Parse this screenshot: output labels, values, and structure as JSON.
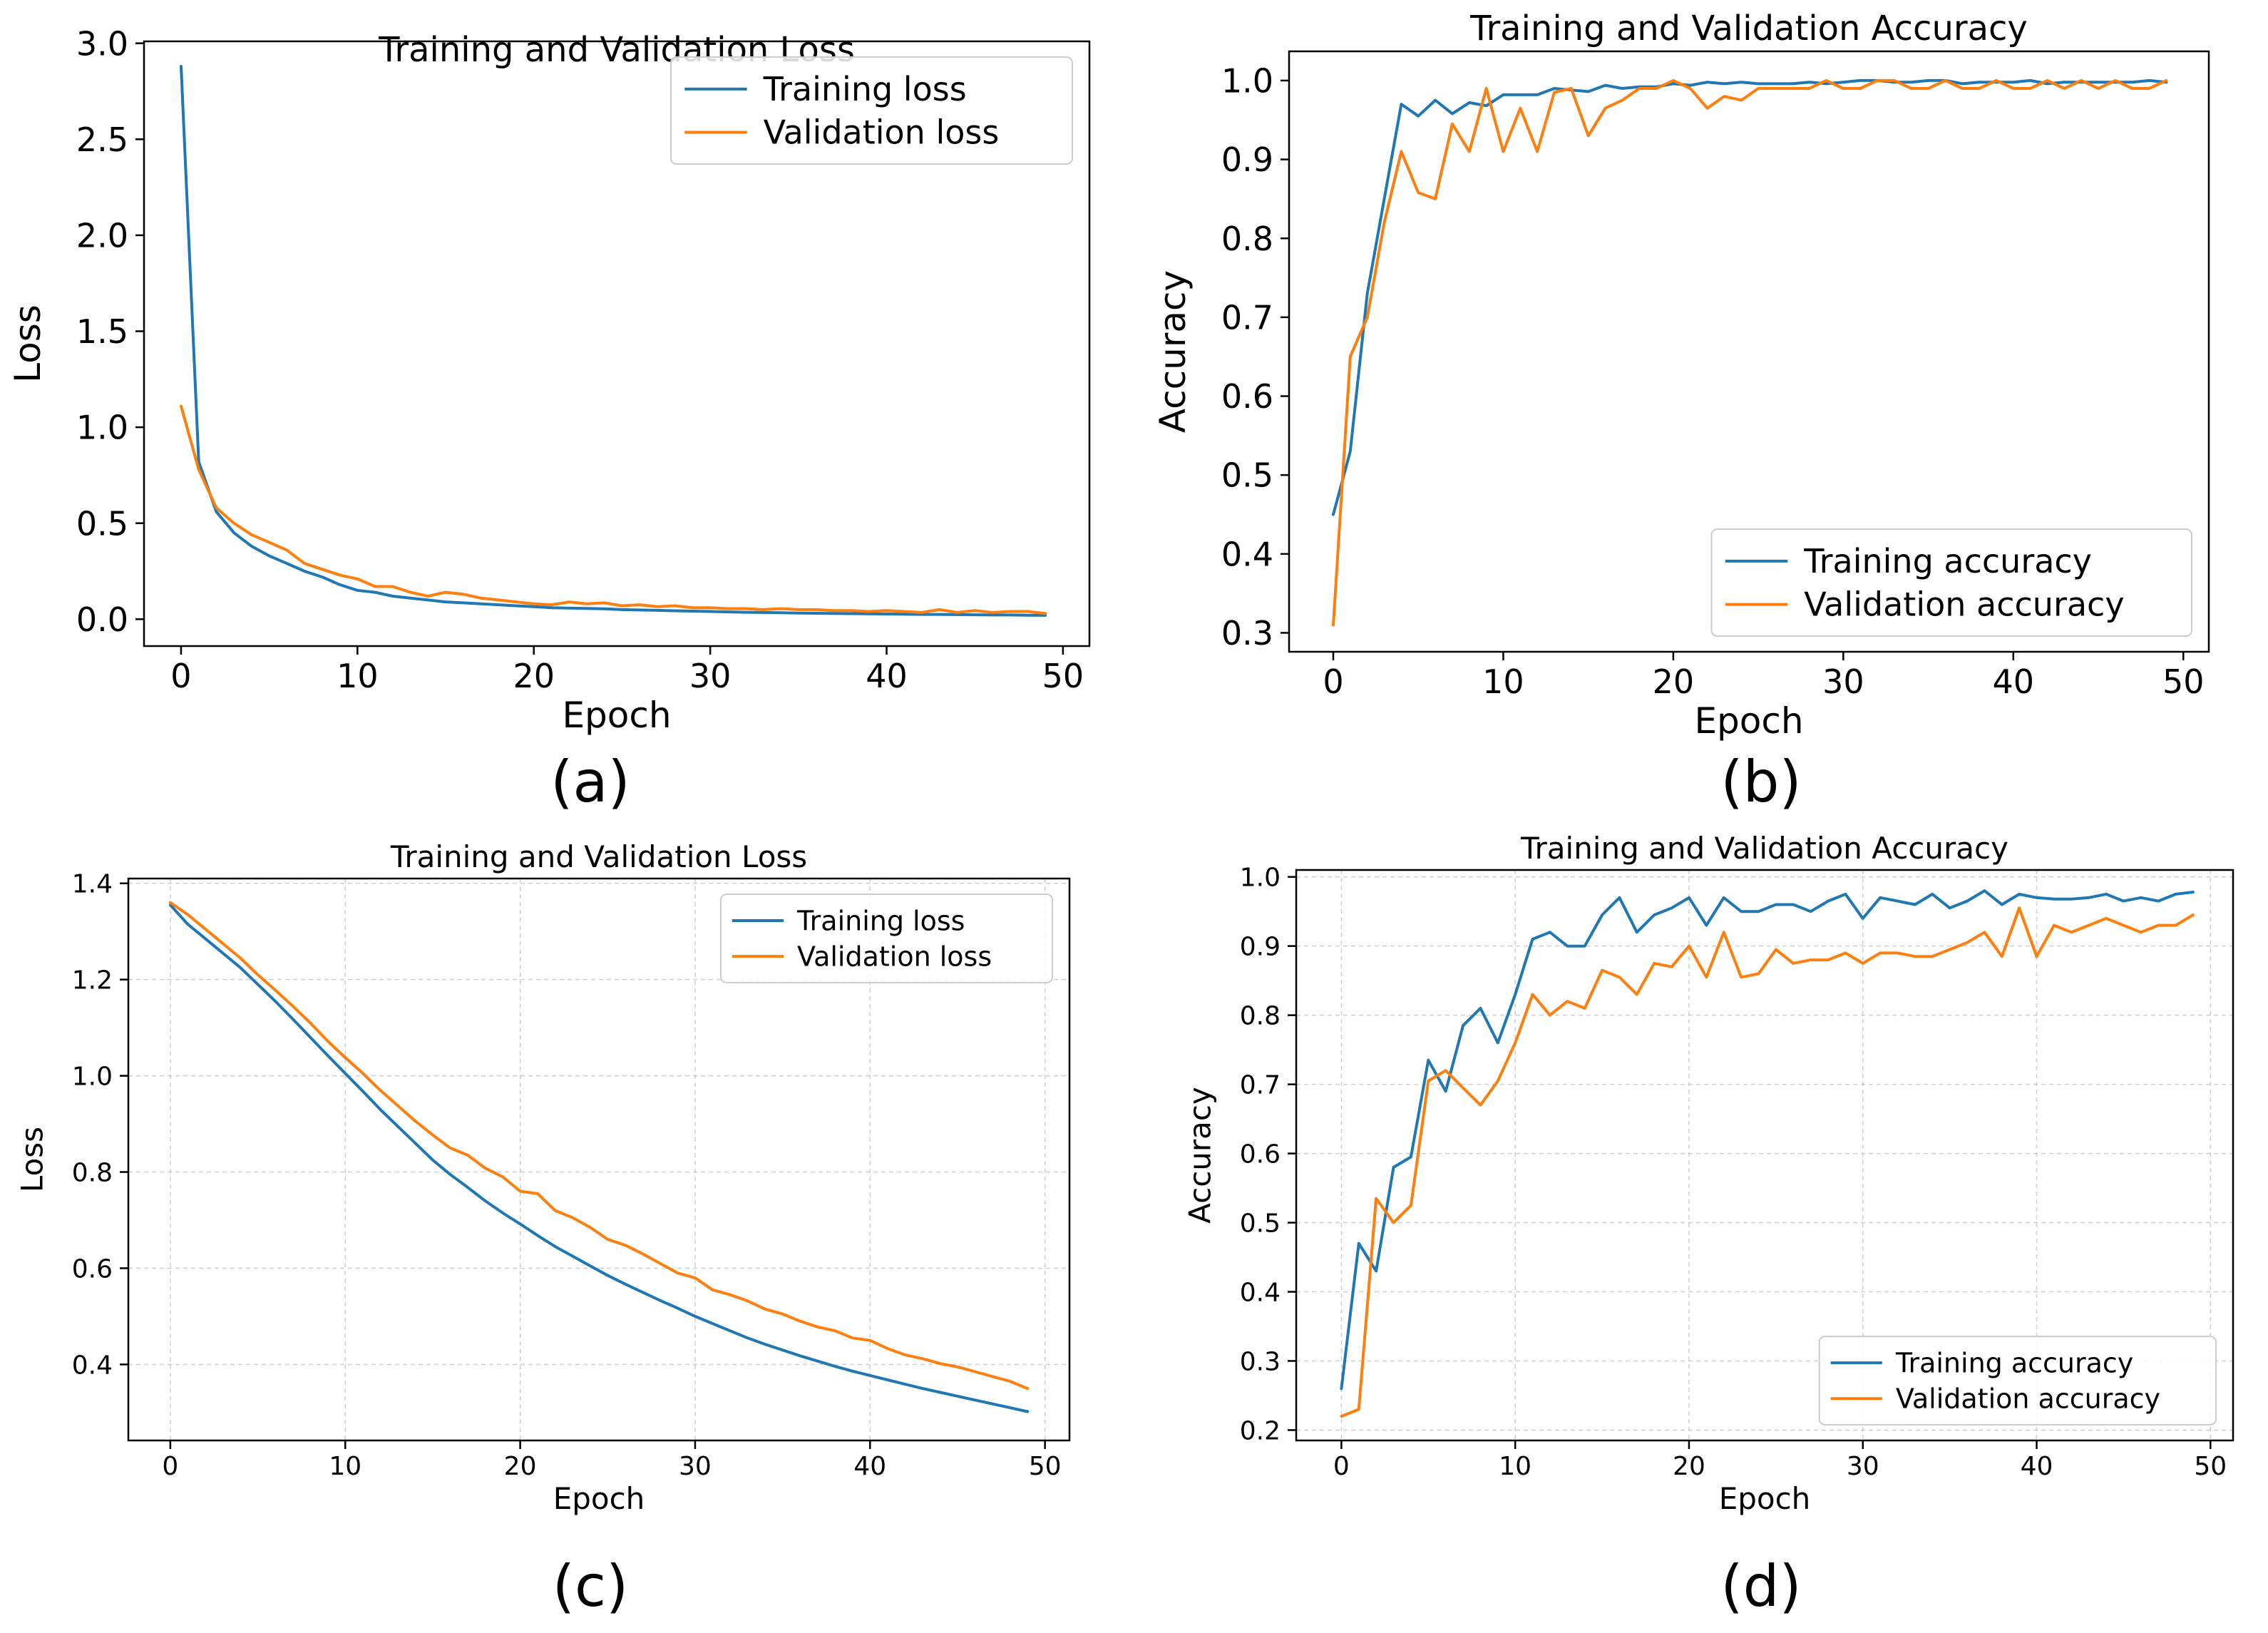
{
  "panel_labels": [
    "(a)",
    "(b)",
    "(c)",
    "(d)"
  ],
  "colors": {
    "training": "#1f77b4",
    "validation": "#ff7f0e",
    "axes": "#000000",
    "grid": "#b0b0b0"
  },
  "chart_data": [
    {
      "type": "line",
      "panel": "(a)",
      "title": "Training and Validation Loss",
      "xlabel": "Epoch",
      "ylabel": "Loss",
      "xlim": [
        -2.1,
        51.5
      ],
      "ylim": [
        -0.14,
        3.01
      ],
      "xticks": [
        0,
        10,
        20,
        30,
        40,
        50
      ],
      "yticks": [
        0.0,
        0.5,
        1.0,
        1.5,
        2.0,
        2.5,
        3.0
      ],
      "ytick_labels": [
        "0.0",
        "0.5",
        "1.0",
        "1.5",
        "2.0",
        "2.5",
        "3.0"
      ],
      "grid": false,
      "legend_loc": "top-right",
      "series": [
        {
          "name": "Training loss",
          "color": "#1f77b4",
          "values": [
            2.88,
            0.82,
            0.56,
            0.45,
            0.38,
            0.33,
            0.29,
            0.25,
            0.22,
            0.18,
            0.15,
            0.14,
            0.12,
            0.11,
            0.1,
            0.09,
            0.085,
            0.08,
            0.075,
            0.07,
            0.065,
            0.06,
            0.058,
            0.056,
            0.054,
            0.05,
            0.048,
            0.046,
            0.044,
            0.042,
            0.04,
            0.038,
            0.036,
            0.035,
            0.034,
            0.032,
            0.031,
            0.03,
            0.029,
            0.028,
            0.027,
            0.026,
            0.025,
            0.025,
            0.024,
            0.023,
            0.022,
            0.022,
            0.021,
            0.02
          ]
        },
        {
          "name": "Validation loss",
          "color": "#ff7f0e",
          "values": [
            1.11,
            0.78,
            0.58,
            0.5,
            0.44,
            0.4,
            0.36,
            0.29,
            0.26,
            0.23,
            0.21,
            0.17,
            0.17,
            0.14,
            0.12,
            0.14,
            0.13,
            0.11,
            0.1,
            0.09,
            0.08,
            0.075,
            0.09,
            0.08,
            0.085,
            0.07,
            0.075,
            0.065,
            0.07,
            0.06,
            0.06,
            0.055,
            0.055,
            0.05,
            0.055,
            0.05,
            0.05,
            0.045,
            0.045,
            0.04,
            0.045,
            0.04,
            0.035,
            0.05,
            0.035,
            0.045,
            0.035,
            0.04,
            0.04,
            0.03
          ]
        }
      ]
    },
    {
      "type": "line",
      "panel": "(b)",
      "title": "Training and Validation Accuracy",
      "xlabel": "Epoch",
      "ylabel": "Accuracy",
      "xlim": [
        -2.6,
        51.5
      ],
      "ylim": [
        0.276,
        1.037
      ],
      "xticks": [
        0,
        10,
        20,
        30,
        40,
        50
      ],
      "yticks": [
        0.3,
        0.4,
        0.5,
        0.6,
        0.7,
        0.8,
        0.9,
        1.0
      ],
      "ytick_labels": [
        "0.3",
        "0.4",
        "0.5",
        "0.6",
        "0.7",
        "0.8",
        "0.9",
        "1.0"
      ],
      "grid": false,
      "legend_loc": "bottom-right",
      "series": [
        {
          "name": "Training accuracy",
          "color": "#1f77b4",
          "values": [
            0.45,
            0.53,
            0.73,
            0.85,
            0.97,
            0.955,
            0.975,
            0.958,
            0.972,
            0.968,
            0.982,
            0.982,
            0.982,
            0.99,
            0.988,
            0.986,
            0.994,
            0.99,
            0.992,
            0.992,
            0.996,
            0.994,
            0.998,
            0.996,
            0.998,
            0.996,
            0.996,
            0.996,
            0.998,
            0.996,
            0.998,
            1.0,
            1.0,
            0.998,
            0.998,
            1.0,
            1.0,
            0.996,
            0.998,
            0.998,
            0.998,
            1.0,
            0.996,
            0.998,
            0.998,
            0.998,
            0.998,
            0.998,
            1.0,
            0.998
          ]
        },
        {
          "name": "Validation accuracy",
          "color": "#ff7f0e",
          "values": [
            0.31,
            0.65,
            0.7,
            0.82,
            0.91,
            0.858,
            0.85,
            0.945,
            0.91,
            0.99,
            0.91,
            0.965,
            0.91,
            0.985,
            0.99,
            0.93,
            0.965,
            0.975,
            0.99,
            0.99,
            1.0,
            0.99,
            0.965,
            0.98,
            0.975,
            0.99,
            0.99,
            0.99,
            0.99,
            1.0,
            0.99,
            0.99,
            1.0,
            1.0,
            0.99,
            0.99,
            1.0,
            0.99,
            0.99,
            1.0,
            0.99,
            0.99,
            1.0,
            0.99,
            1.0,
            0.99,
            1.0,
            0.99,
            0.99,
            1.0
          ]
        }
      ]
    },
    {
      "type": "line",
      "panel": "(c)",
      "title": "Training and Validation Loss",
      "xlabel": "Epoch",
      "ylabel": "Loss",
      "xlim": [
        -2.4,
        51.4
      ],
      "ylim": [
        0.242,
        1.41
      ],
      "xticks": [
        0,
        10,
        20,
        30,
        40,
        50
      ],
      "yticks": [
        0.4,
        0.6,
        0.8,
        1.0,
        1.2,
        1.4
      ],
      "ytick_labels": [
        "0.4",
        "0.6",
        "0.8",
        "1.0",
        "1.2",
        "1.4"
      ],
      "grid": true,
      "legend_loc": "top-right",
      "series": [
        {
          "name": "Training loss",
          "color": "#1f77b4",
          "values": [
            1.355,
            1.315,
            1.285,
            1.255,
            1.225,
            1.19,
            1.155,
            1.118,
            1.08,
            1.042,
            1.005,
            0.968,
            0.93,
            0.895,
            0.86,
            0.825,
            0.795,
            0.768,
            0.74,
            0.715,
            0.692,
            0.668,
            0.645,
            0.625,
            0.605,
            0.585,
            0.567,
            0.55,
            0.533,
            0.517,
            0.5,
            0.485,
            0.47,
            0.455,
            0.442,
            0.43,
            0.418,
            0.407,
            0.396,
            0.386,
            0.377,
            0.368,
            0.359,
            0.35,
            0.342,
            0.334,
            0.326,
            0.318,
            0.31,
            0.302
          ]
        },
        {
          "name": "Validation loss",
          "color": "#ff7f0e",
          "values": [
            1.36,
            1.335,
            1.305,
            1.275,
            1.245,
            1.21,
            1.178,
            1.145,
            1.11,
            1.072,
            1.038,
            1.005,
            0.97,
            0.938,
            0.906,
            0.877,
            0.85,
            0.835,
            0.808,
            0.79,
            0.76,
            0.755,
            0.72,
            0.705,
            0.685,
            0.66,
            0.648,
            0.63,
            0.61,
            0.59,
            0.58,
            0.555,
            0.545,
            0.532,
            0.515,
            0.505,
            0.49,
            0.478,
            0.47,
            0.455,
            0.45,
            0.433,
            0.42,
            0.412,
            0.402,
            0.395,
            0.385,
            0.375,
            0.365,
            0.35
          ]
        }
      ]
    },
    {
      "type": "line",
      "panel": "(d)",
      "title": "Training and Validation Accuracy",
      "xlabel": "Epoch",
      "ylabel": "Accuracy",
      "xlim": [
        -2.6,
        51.3
      ],
      "ylim": [
        0.185,
        1.01
      ],
      "xticks": [
        0,
        10,
        20,
        30,
        40,
        50
      ],
      "yticks": [
        0.2,
        0.3,
        0.4,
        0.5,
        0.6,
        0.7,
        0.8,
        0.9,
        1.0
      ],
      "ytick_labels": [
        "0.2",
        "0.3",
        "0.4",
        "0.5",
        "0.6",
        "0.7",
        "0.8",
        "0.9",
        "1.0"
      ],
      "grid": true,
      "legend_loc": "bottom-right",
      "series": [
        {
          "name": "Training accuracy",
          "color": "#1f77b4",
          "values": [
            0.26,
            0.47,
            0.43,
            0.58,
            0.595,
            0.735,
            0.69,
            0.785,
            0.81,
            0.76,
            0.83,
            0.91,
            0.92,
            0.9,
            0.9,
            0.945,
            0.97,
            0.92,
            0.945,
            0.955,
            0.97,
            0.93,
            0.97,
            0.95,
            0.95,
            0.96,
            0.96,
            0.95,
            0.965,
            0.975,
            0.94,
            0.97,
            0.965,
            0.96,
            0.975,
            0.955,
            0.965,
            0.98,
            0.96,
            0.975,
            0.97,
            0.968,
            0.968,
            0.97,
            0.975,
            0.965,
            0.97,
            0.965,
            0.975,
            0.978
          ]
        },
        {
          "name": "Validation accuracy",
          "color": "#ff7f0e",
          "values": [
            0.22,
            0.23,
            0.535,
            0.5,
            0.525,
            0.705,
            0.72,
            0.695,
            0.67,
            0.705,
            0.76,
            0.83,
            0.8,
            0.82,
            0.81,
            0.865,
            0.855,
            0.83,
            0.875,
            0.87,
            0.9,
            0.855,
            0.92,
            0.855,
            0.86,
            0.895,
            0.875,
            0.88,
            0.88,
            0.89,
            0.875,
            0.89,
            0.89,
            0.885,
            0.885,
            0.895,
            0.905,
            0.92,
            0.885,
            0.955,
            0.885,
            0.93,
            0.92,
            0.93,
            0.94,
            0.93,
            0.92,
            0.93,
            0.93,
            0.945
          ]
        }
      ]
    }
  ]
}
